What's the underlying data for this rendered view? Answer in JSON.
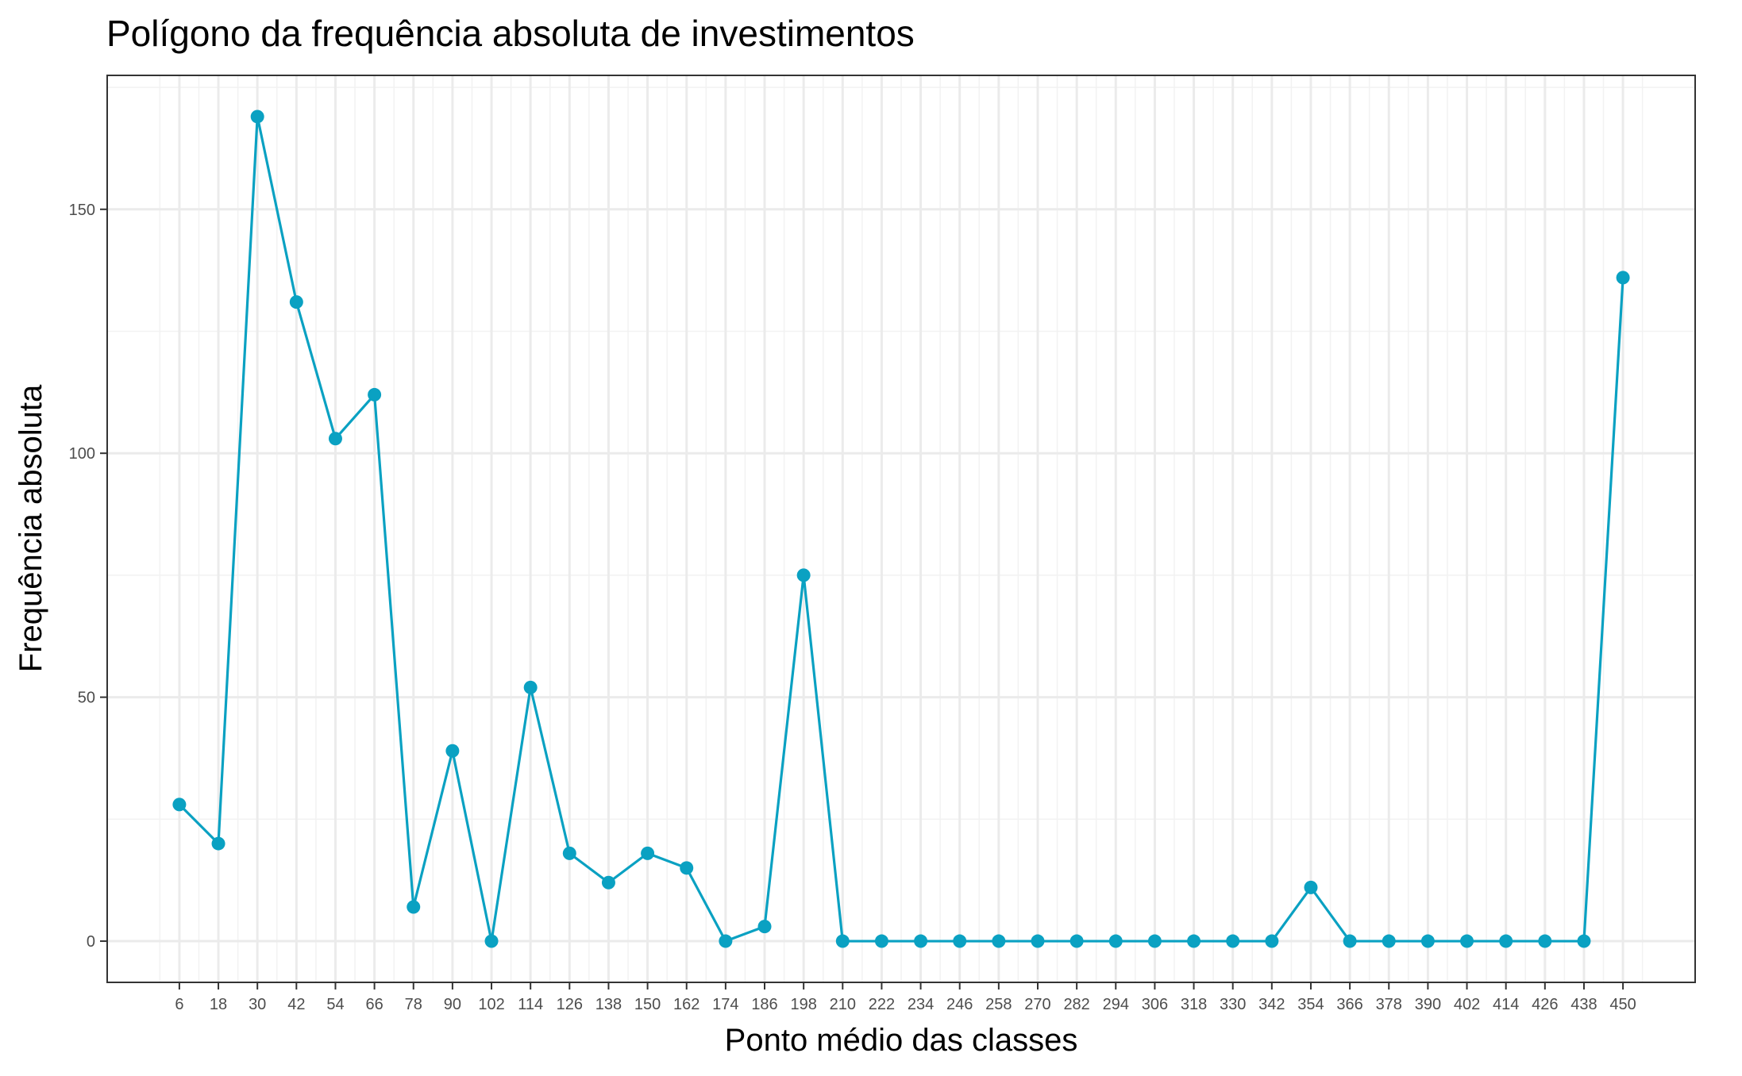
{
  "chart_data": {
    "type": "line",
    "title": "Polígono da frequência absoluta de investimentos",
    "xlabel": "Ponto médio das classes",
    "ylabel": "Frequência absoluta",
    "x": [
      6,
      18,
      30,
      42,
      54,
      66,
      78,
      90,
      102,
      114,
      126,
      138,
      150,
      162,
      174,
      186,
      198,
      210,
      222,
      234,
      246,
      258,
      270,
      282,
      294,
      306,
      318,
      330,
      342,
      354,
      366,
      378,
      390,
      402,
      414,
      426,
      438,
      450
    ],
    "series": [
      {
        "values": [
          28,
          20,
          169,
          131,
          103,
          112,
          7,
          39,
          0,
          52,
          18,
          12,
          18,
          15,
          0,
          3,
          75,
          0,
          0,
          0,
          0,
          0,
          0,
          0,
          0,
          0,
          0,
          0,
          0,
          11,
          0,
          0,
          0,
          0,
          0,
          0,
          0,
          136
        ],
        "color": "#0aa1c2"
      }
    ],
    "x_ticks": [
      "6",
      "18",
      "30",
      "42",
      "54",
      "66",
      "78",
      "90",
      "102",
      "114",
      "126",
      "138",
      "150",
      "162",
      "174",
      "186",
      "198",
      "210",
      "222",
      "234",
      "246",
      "258",
      "270",
      "282",
      "294",
      "306",
      "318",
      "330",
      "342",
      "354",
      "366",
      "378",
      "390",
      "402",
      "414",
      "426",
      "438",
      "450"
    ],
    "y_ticks": [
      0,
      50,
      100,
      150
    ],
    "y_tick_labels": [
      "0",
      "50",
      "100",
      "150"
    ],
    "ylim": [
      -8.45,
      177.45
    ],
    "xlim": [
      -16.2,
      472.2
    ],
    "grid": true,
    "legend": "none"
  }
}
